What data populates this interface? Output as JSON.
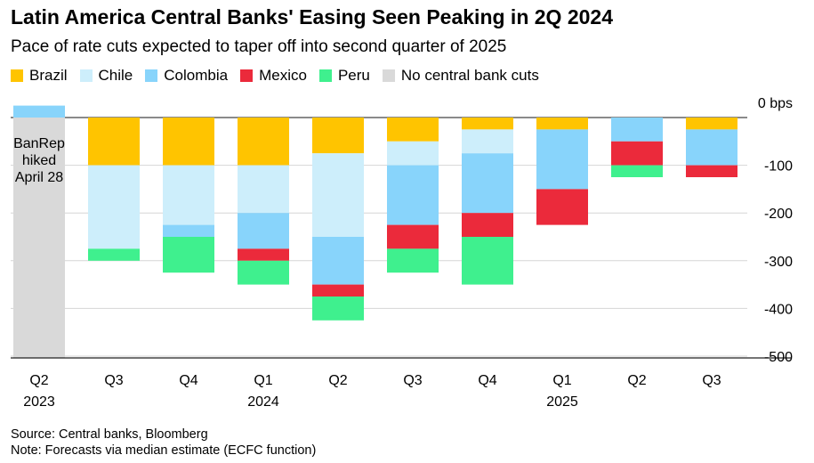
{
  "title": "Latin America Central Banks' Easing Seen Peaking in 2Q 2024",
  "subtitle": "Pace of rate cuts expected to taper off into second quarter of 2025",
  "legend": [
    {
      "name": "Brazil",
      "color": "#ffc400"
    },
    {
      "name": "Chile",
      "color": "#cdeefb"
    },
    {
      "name": "Colombia",
      "color": "#88d4fb"
    },
    {
      "name": "Mexico",
      "color": "#eb2a3b"
    },
    {
      "name": "Peru",
      "color": "#3ff08e"
    },
    {
      "name": "No central bank cuts",
      "color": "#d9d9d9"
    }
  ],
  "annotation": {
    "lines": [
      "BanRep",
      "hiked",
      "April 28"
    ]
  },
  "source": "Source: Central banks, Bloomberg",
  "note": "Note: Forecasts via median estimate (ECFC function)",
  "chart_data": {
    "type": "bar",
    "stacked": true,
    "categories": [
      "Q2",
      "Q3",
      "Q4",
      "Q1",
      "Q2",
      "Q3",
      "Q4",
      "Q1",
      "Q2",
      "Q3"
    ],
    "year_labels": [
      "2023",
      "",
      "",
      "2024",
      "",
      "",
      "",
      "2025",
      "",
      ""
    ],
    "series": [
      {
        "name": "Brazil",
        "color": "#ffc400",
        "values": [
          0,
          -100,
          -100,
          -100,
          -75,
          -50,
          -25,
          -25,
          0,
          -25
        ]
      },
      {
        "name": "Chile",
        "color": "#cdeefb",
        "values": [
          0,
          -175,
          -125,
          -100,
          -175,
          -50,
          -50,
          0,
          0,
          0
        ]
      },
      {
        "name": "Colombia",
        "color": "#88d4fb",
        "values": [
          25,
          0,
          -25,
          -75,
          -100,
          -125,
          -125,
          -125,
          -50,
          -75
        ]
      },
      {
        "name": "Mexico",
        "color": "#eb2a3b",
        "values": [
          0,
          0,
          0,
          -25,
          -25,
          -50,
          -50,
          -75,
          -50,
          -25
        ]
      },
      {
        "name": "Peru",
        "color": "#3ff08e",
        "values": [
          0,
          -25,
          -75,
          -50,
          -50,
          -50,
          -100,
          0,
          -25,
          0
        ]
      }
    ],
    "no_cuts_shading": {
      "category_index": 0,
      "color": "#d9d9d9",
      "label": "No central bank cuts"
    },
    "yticks": [
      0,
      -100,
      -200,
      -300,
      -400,
      -500
    ],
    "ytick_labels": [
      "0 bps",
      "-100",
      "-200",
      "-300",
      "-400",
      "-500"
    ],
    "ylim": [
      -500,
      25
    ],
    "ylabel": "",
    "xlabel": "",
    "grid": true,
    "legend_position": "top-left"
  }
}
